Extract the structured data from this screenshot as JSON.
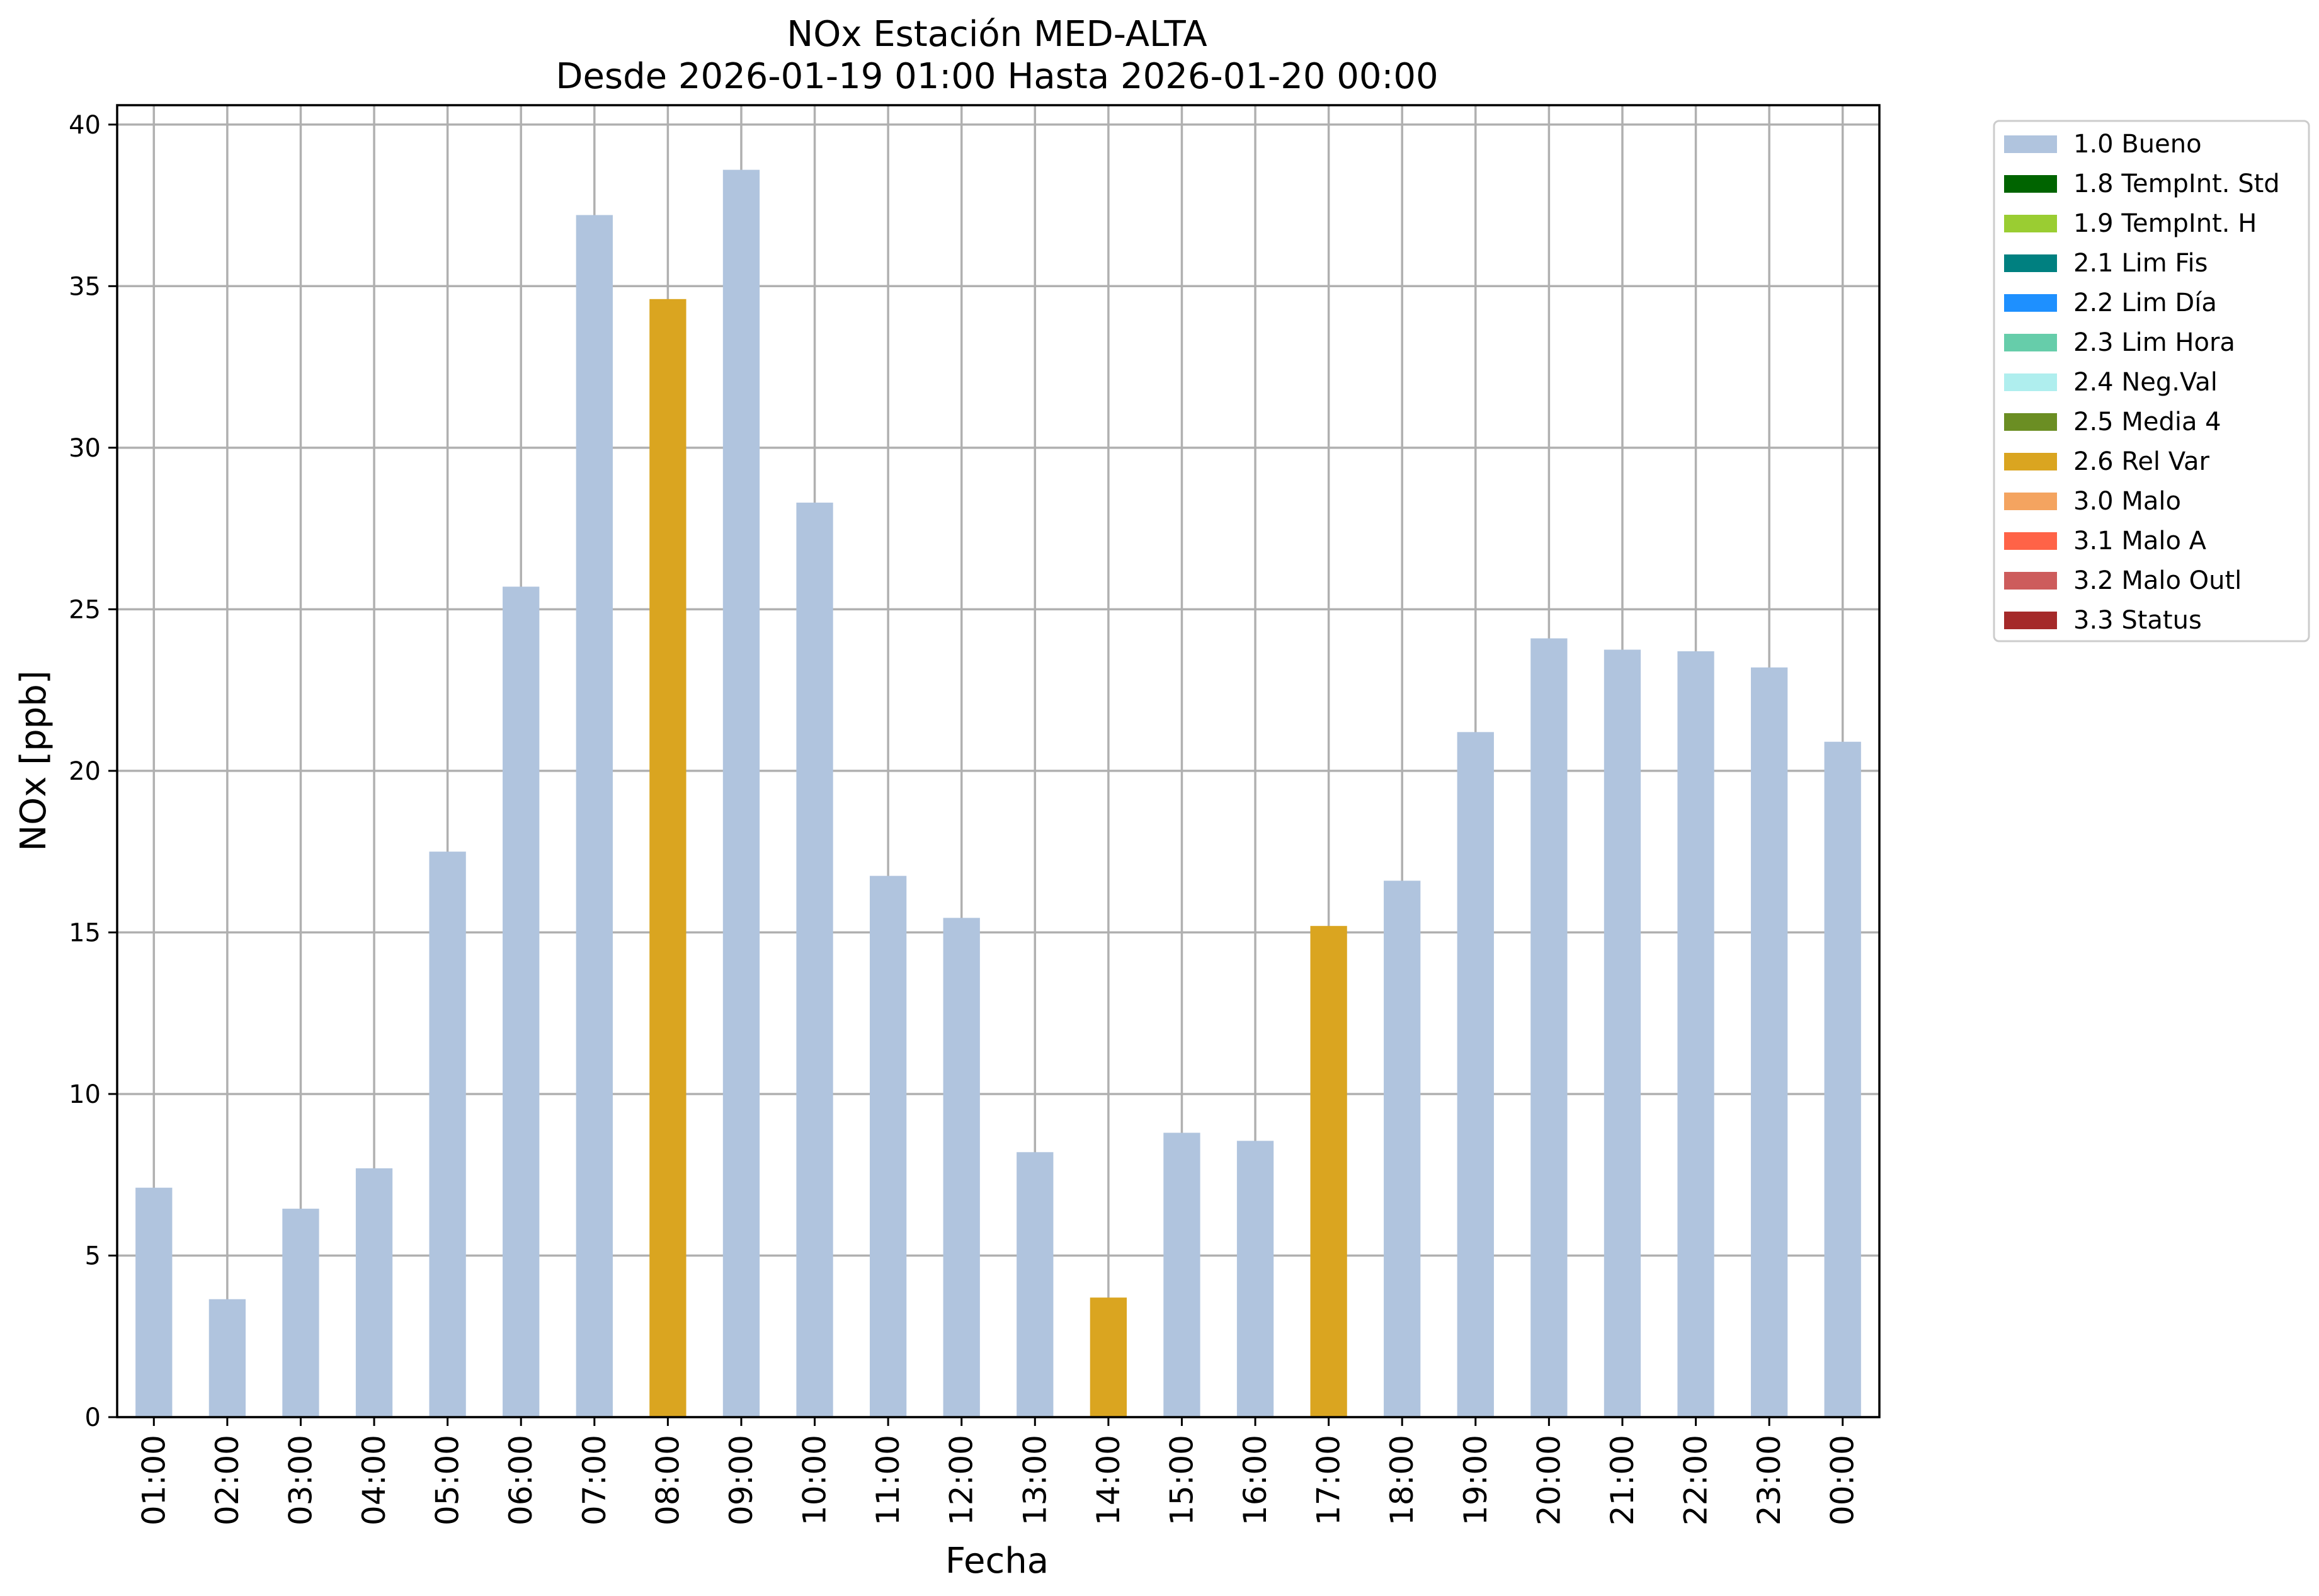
{
  "chart_data": {
    "type": "bar",
    "title": "NOx Estación MED-ALTA",
    "subtitle": "Desde 2026-01-19 01:00 Hasta 2026-01-20 00:00",
    "xlabel": "Fecha",
    "ylabel": "NOx [ppb]",
    "ylim": [
      0,
      40.6
    ],
    "yticks": [
      0,
      5,
      10,
      15,
      20,
      25,
      30,
      35,
      40
    ],
    "grid": true,
    "legend_position": "outside-top-right",
    "categories": [
      "01:00",
      "02:00",
      "03:00",
      "04:00",
      "05:00",
      "06:00",
      "07:00",
      "08:00",
      "09:00",
      "10:00",
      "11:00",
      "12:00",
      "13:00",
      "14:00",
      "15:00",
      "16:00",
      "17:00",
      "18:00",
      "19:00",
      "20:00",
      "21:00",
      "22:00",
      "23:00",
      "00:00"
    ],
    "values": [
      7.1,
      3.65,
      6.45,
      7.7,
      17.5,
      25.7,
      37.2,
      34.6,
      38.6,
      28.3,
      16.75,
      15.45,
      8.2,
      3.7,
      8.8,
      8.55,
      15.2,
      16.6,
      21.2,
      24.1,
      23.75,
      23.7,
      23.2,
      20.9
    ],
    "flags": [
      "1.0 Bueno",
      "1.0 Bueno",
      "1.0 Bueno",
      "1.0 Bueno",
      "1.0 Bueno",
      "1.0 Bueno",
      "1.0 Bueno",
      "2.6 Rel Var",
      "1.0 Bueno",
      "1.0 Bueno",
      "1.0 Bueno",
      "1.0 Bueno",
      "1.0 Bueno",
      "2.6 Rel Var",
      "1.0 Bueno",
      "1.0 Bueno",
      "2.6 Rel Var",
      "1.0 Bueno",
      "1.0 Bueno",
      "1.0 Bueno",
      "1.0 Bueno",
      "1.0 Bueno",
      "1.0 Bueno",
      "1.0 Bueno"
    ],
    "legend": [
      {
        "label": "1.0 Bueno",
        "color": "#b0c4de"
      },
      {
        "label": "1.8 TempInt. Std",
        "color": "#006400"
      },
      {
        "label": "1.9 TempInt. H",
        "color": "#9acd32"
      },
      {
        "label": "2.1 Lim Fis",
        "color": "#008080"
      },
      {
        "label": "2.2 Lim Día",
        "color": "#1e90ff"
      },
      {
        "label": "2.3 Lim Hora",
        "color": "#66cdaa"
      },
      {
        "label": "2.4 Neg.Val",
        "color": "#afeeee"
      },
      {
        "label": "2.5 Media 4",
        "color": "#6b8e23"
      },
      {
        "label": "2.6 Rel Var",
        "color": "#daa520"
      },
      {
        "label": "3.0 Malo",
        "color": "#f4a460"
      },
      {
        "label": "3.1 Malo A",
        "color": "#ff6347"
      },
      {
        "label": "3.2 Malo Outl",
        "color": "#cd5c5c"
      },
      {
        "label": "3.3 Status",
        "color": "#a52a2a"
      }
    ]
  }
}
